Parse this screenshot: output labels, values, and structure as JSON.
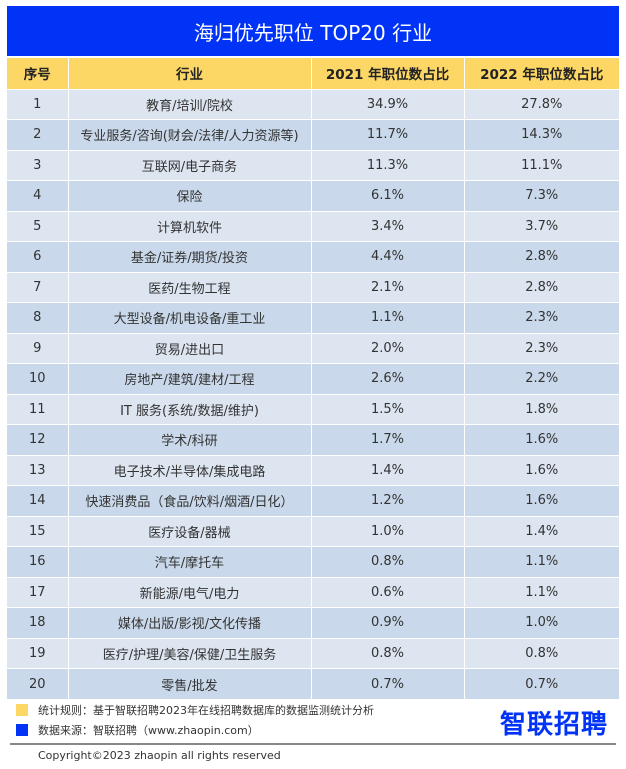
{
  "title": "海归优先职位 TOP20 行业",
  "headers": [
    "序号",
    "行业",
    "2021 年职位数占比",
    "2022 年职位数占比"
  ],
  "rows": [
    [
      "1",
      "教育/培训/院校",
      "34.9%",
      "27.8%"
    ],
    [
      "2",
      "专业服务/咨询(财会/法律/人力资源等)",
      "11.7%",
      "14.3%"
    ],
    [
      "3",
      "互联网/电子商务",
      "11.3%",
      "11.1%"
    ],
    [
      "4",
      "保险",
      "6.1%",
      "7.3%"
    ],
    [
      "5",
      "计算机软件",
      "3.4%",
      "3.7%"
    ],
    [
      "6",
      "基金/证券/期货/投资",
      "4.4%",
      "2.8%"
    ],
    [
      "7",
      "医药/生物工程",
      "2.1%",
      "2.8%"
    ],
    [
      "8",
      "大型设备/机电设备/重工业",
      "1.1%",
      "2.3%"
    ],
    [
      "9",
      "贸易/进出口",
      "2.0%",
      "2.3%"
    ],
    [
      "10",
      "房地产/建筑/建材/工程",
      "2.6%",
      "2.2%"
    ],
    [
      "11",
      "IT 服务(系统/数据/维护)",
      "1.5%",
      "1.8%"
    ],
    [
      "12",
      "学术/科研",
      "1.7%",
      "1.6%"
    ],
    [
      "13",
      "电子技术/半导体/集成电路",
      "1.4%",
      "1.6%"
    ],
    [
      "14",
      "快速消费品（食品/饮料/烟酒/日化）",
      "1.2%",
      "1.6%"
    ],
    [
      "15",
      "医疗设备/器械",
      "1.0%",
      "1.4%"
    ],
    [
      "16",
      "汽车/摩托车",
      "0.8%",
      "1.1%"
    ],
    [
      "17",
      "新能源/电气/电力",
      "0.6%",
      "1.1%"
    ],
    [
      "18",
      "媒体/出版/影视/文化传播",
      "0.9%",
      "1.0%"
    ],
    [
      "19",
      "医疗/护理/美容/保健/卫生服务",
      "0.8%",
      "0.8%"
    ],
    [
      "20",
      "零售/批发",
      "0.7%",
      "0.7%"
    ]
  ],
  "footer": {
    "rule": "统计规则：基于智联招聘2023年在线招聘数据库的数据监测统计分析",
    "source": "数据来源：智联招聘（www.zhaopin.com）",
    "logo": "智联招聘",
    "copyright": "Copyright©2023 zhaopin all rights reserved"
  },
  "colors": {
    "brand_blue": "#0033f5",
    "header_yellow": "#fdd766"
  }
}
